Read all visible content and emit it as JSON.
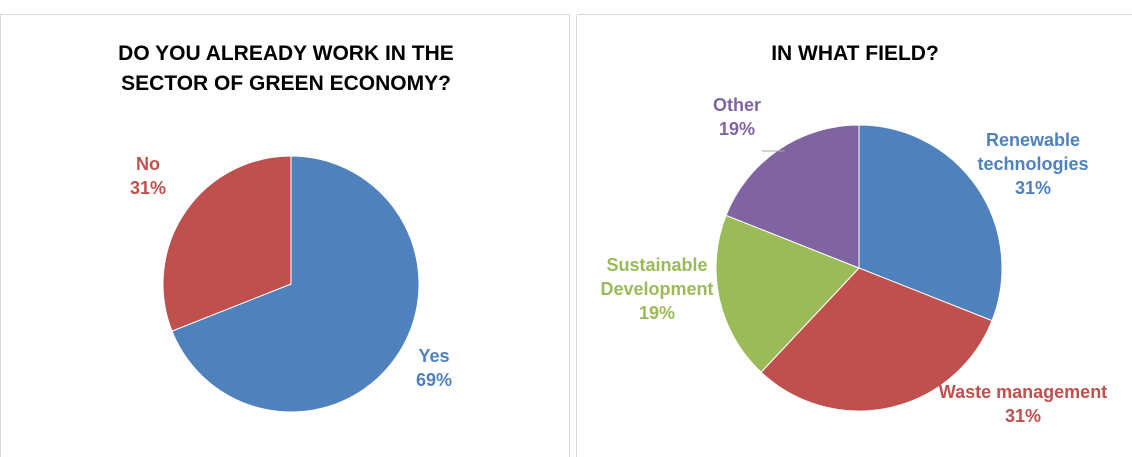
{
  "chart_data": [
    {
      "type": "pie",
      "title": [
        "DO YOU ALREADY WORK IN THE",
        "SECTOR OF GREEN ECONOMY?"
      ],
      "slices": [
        {
          "label": "Yes",
          "value": 69,
          "percent_label": "69%",
          "color": "#4f81bd"
        },
        {
          "label": "No",
          "value": 31,
          "percent_label": "31%",
          "color": "#c0504d"
        }
      ],
      "legend": "none",
      "data_labels": "outside, category name and percentage"
    },
    {
      "type": "pie",
      "title": [
        "IN WHAT FIELD?"
      ],
      "slices": [
        {
          "label": "Renewable technologies",
          "label_lines": [
            "Renewable",
            "technologies"
          ],
          "value": 31,
          "percent_label": "31%",
          "color": "#4f81bd"
        },
        {
          "label": "Waste management",
          "label_lines": [
            "Waste management"
          ],
          "value": 31,
          "percent_label": "31%",
          "color": "#c0504d"
        },
        {
          "label": "Sustainable Development",
          "label_lines": [
            "Sustainable",
            "Development"
          ],
          "value": 19,
          "percent_label": "19%",
          "color": "#9bbb59"
        },
        {
          "label": "Other",
          "label_lines": [
            "Other"
          ],
          "value": 19,
          "percent_label": "19%",
          "color": "#8064a2"
        }
      ],
      "legend": "none",
      "data_labels": "outside, category name and percentage"
    }
  ]
}
